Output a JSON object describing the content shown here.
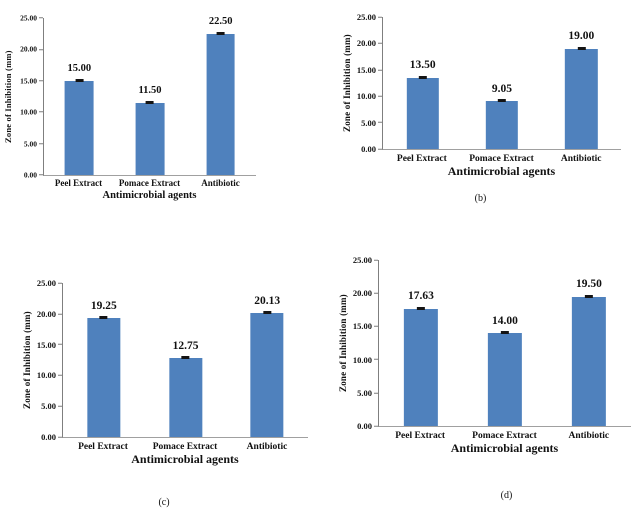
{
  "bar_color": "#4f81bd",
  "error_cap_color": "#141414",
  "axis_color": "#7f7f7f",
  "chart_data": [
    {
      "type": "bar",
      "panel_label": "",
      "xlabel": "Antimicrobial agents",
      "ylabel": "Zone of Inhibition (mm)",
      "categories": [
        "Peel Extract",
        "Pomace Extract",
        "Antibiotic"
      ],
      "values": [
        15.0,
        11.5,
        22.5
      ],
      "value_labels": [
        "15.00",
        "11.50",
        "22.50"
      ],
      "ylim": [
        0,
        25
      ],
      "y_ticks": [
        "25.00",
        "20.00",
        "15.00",
        "10.00",
        "5.00",
        "0.00"
      ],
      "error_bars": true,
      "grid": false,
      "legend": "none"
    },
    {
      "type": "bar",
      "panel_label": "(b)",
      "xlabel": "Antimicrobial agents",
      "ylabel": "Zone of Inhibition (mm)",
      "categories": [
        "Peel Extract",
        "Pomace Extract",
        "Antibiotic"
      ],
      "values": [
        13.5,
        9.05,
        19.0
      ],
      "value_labels": [
        "13.50",
        "9.05",
        "19.00"
      ],
      "ylim": [
        0,
        25
      ],
      "y_ticks": [
        "25.00",
        "20.00",
        "15.00",
        "10.00",
        "5.00",
        "0.00"
      ],
      "error_bars": true,
      "grid": false,
      "legend": "none"
    },
    {
      "type": "bar",
      "panel_label": "(c)",
      "xlabel": "Antimicrobial agents",
      "ylabel": "Zone of Inhibition (mm)",
      "categories": [
        "Peel Extract",
        "Pomace Extract",
        "Antibiotic"
      ],
      "values": [
        19.25,
        12.75,
        20.13
      ],
      "value_labels": [
        "19.25",
        "12.75",
        "20.13"
      ],
      "ylim": [
        0,
        25
      ],
      "y_ticks": [
        "25.00",
        "20.00",
        "15.00",
        "10.00",
        "5.00",
        "0.00"
      ],
      "error_bars": true,
      "grid": false,
      "legend": "none"
    },
    {
      "type": "bar",
      "panel_label": "(d)",
      "xlabel": "Antimicrobial agents",
      "ylabel": "Zone of Inhibition (mm)",
      "categories": [
        "Peel Extract",
        "Pomace Extract",
        "Antibiotic"
      ],
      "values": [
        17.63,
        14.0,
        19.5
      ],
      "value_labels": [
        "17.63",
        "14.00",
        "19.50"
      ],
      "ylim": [
        0,
        25
      ],
      "y_ticks": [
        "25.00",
        "20.00",
        "15.00",
        "10.00",
        "5.00",
        "0.00"
      ],
      "error_bars": true,
      "grid": false,
      "legend": "none"
    }
  ]
}
